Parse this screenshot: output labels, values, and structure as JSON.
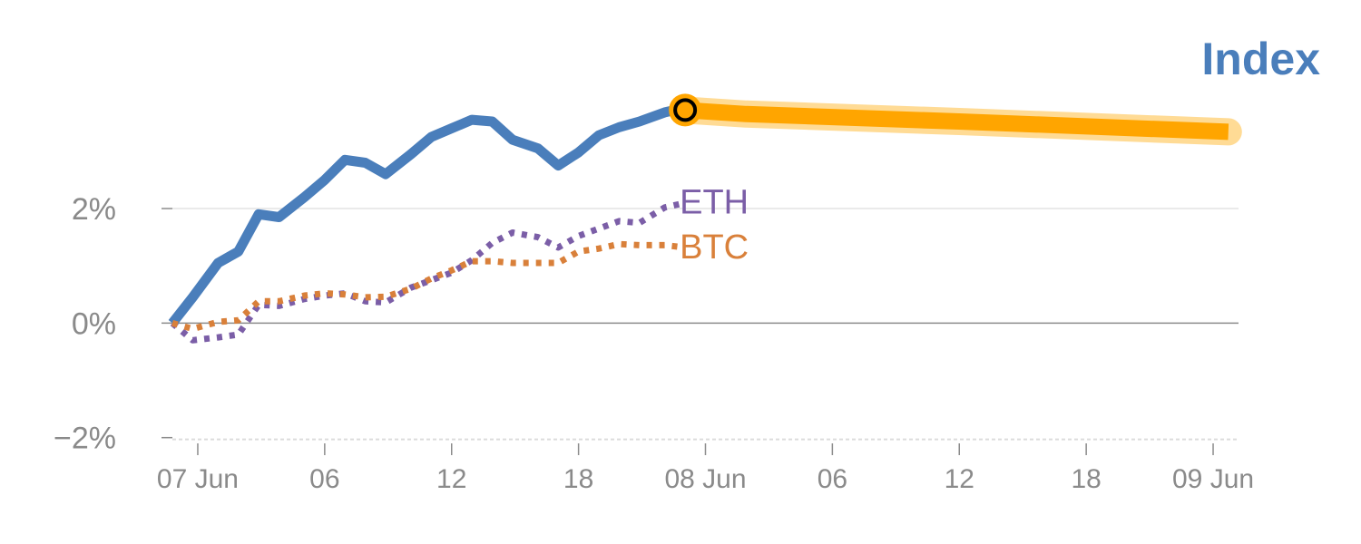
{
  "chart_data": {
    "type": "line",
    "title": "Index",
    "xlabel": "",
    "ylabel": "",
    "x_range": [
      -0.05,
      2.05
    ],
    "ylim": [
      -2.1,
      3.9
    ],
    "grid": "horizontal",
    "x_ticks": [
      {
        "x": 0,
        "label": "07 Jun"
      },
      {
        "x": 0.25,
        "label": "06"
      },
      {
        "x": 0.5,
        "label": "12"
      },
      {
        "x": 0.75,
        "label": "18"
      },
      {
        "x": 1,
        "label": "08 Jun"
      },
      {
        "x": 1.25,
        "label": "06"
      },
      {
        "x": 1.5,
        "label": "12"
      },
      {
        "x": 1.75,
        "label": "18"
      },
      {
        "x": 2,
        "label": "09 Jun"
      }
    ],
    "y_ticks": [
      {
        "y": 2,
        "label": "2%"
      },
      {
        "y": 0,
        "label": "0%"
      },
      {
        "y": -2,
        "label": "−2%"
      }
    ],
    "series": [
      {
        "name": "Index",
        "color": "#4a7ebb",
        "style": "solid",
        "x": [
          -0.05,
          -0.01,
          0.04,
          0.08,
          0.12,
          0.16,
          0.21,
          0.25,
          0.29,
          0.33,
          0.37,
          0.42,
          0.46,
          0.5,
          0.54,
          0.58,
          0.62,
          0.67,
          0.71,
          0.75,
          0.79,
          0.83,
          0.87,
          0.92,
          0.94
        ],
        "y": [
          0,
          0.45,
          1.05,
          1.25,
          1.9,
          1.85,
          2.2,
          2.5,
          2.85,
          2.8,
          2.6,
          2.95,
          3.25,
          3.4,
          3.55,
          3.52,
          3.2,
          3.05,
          2.75,
          2.98,
          3.28,
          3.42,
          3.52,
          3.68,
          3.72
        ]
      },
      {
        "name": "ETH",
        "color": "#7b5ea7",
        "style": "dotted",
        "x": [
          -0.05,
          -0.01,
          0.04,
          0.08,
          0.12,
          0.16,
          0.21,
          0.25,
          0.29,
          0.33,
          0.37,
          0.42,
          0.46,
          0.5,
          0.54,
          0.58,
          0.62,
          0.67,
          0.71,
          0.75,
          0.79,
          0.83,
          0.87,
          0.92,
          0.96
        ],
        "y": [
          0,
          -0.3,
          -0.25,
          -0.2,
          0.32,
          0.3,
          0.42,
          0.48,
          0.52,
          0.38,
          0.36,
          0.62,
          0.75,
          0.88,
          1.1,
          1.4,
          1.58,
          1.5,
          1.32,
          1.52,
          1.65,
          1.78,
          1.75,
          2.02,
          2.1
        ]
      },
      {
        "name": "BTC",
        "color": "#d9803a",
        "style": "dotted",
        "x": [
          -0.05,
          -0.01,
          0.04,
          0.08,
          0.12,
          0.16,
          0.21,
          0.25,
          0.29,
          0.33,
          0.37,
          0.42,
          0.46,
          0.5,
          0.54,
          0.58,
          0.62,
          0.67,
          0.71,
          0.75,
          0.79,
          0.83,
          0.87,
          0.92,
          0.96
        ],
        "y": [
          0,
          -0.1,
          0.02,
          0.05,
          0.38,
          0.38,
          0.48,
          0.52,
          0.5,
          0.45,
          0.46,
          0.6,
          0.78,
          0.92,
          1.08,
          1.08,
          1.05,
          1.05,
          1.05,
          1.25,
          1.3,
          1.38,
          1.36,
          1.36,
          1.32
        ]
      },
      {
        "name": "Index forecast",
        "color": "#ffa500",
        "style": "band",
        "x": [
          0.96,
          1.08,
          1.5,
          2.03
        ],
        "y": [
          3.72,
          3.65,
          3.52,
          3.34
        ]
      }
    ],
    "marker": {
      "x": 0.96,
      "y": 3.72
    }
  },
  "labels": {
    "title": "Index",
    "eth": "ETH",
    "btc": "BTC"
  },
  "colors": {
    "title": "#4a7ebb",
    "eth": "#7b5ea7",
    "btc": "#d9803a",
    "forecast": "#ffa500",
    "forecast_halo": "#ffd27a",
    "axis": "#8a8a8a",
    "grid": "#e4e4e4"
  }
}
